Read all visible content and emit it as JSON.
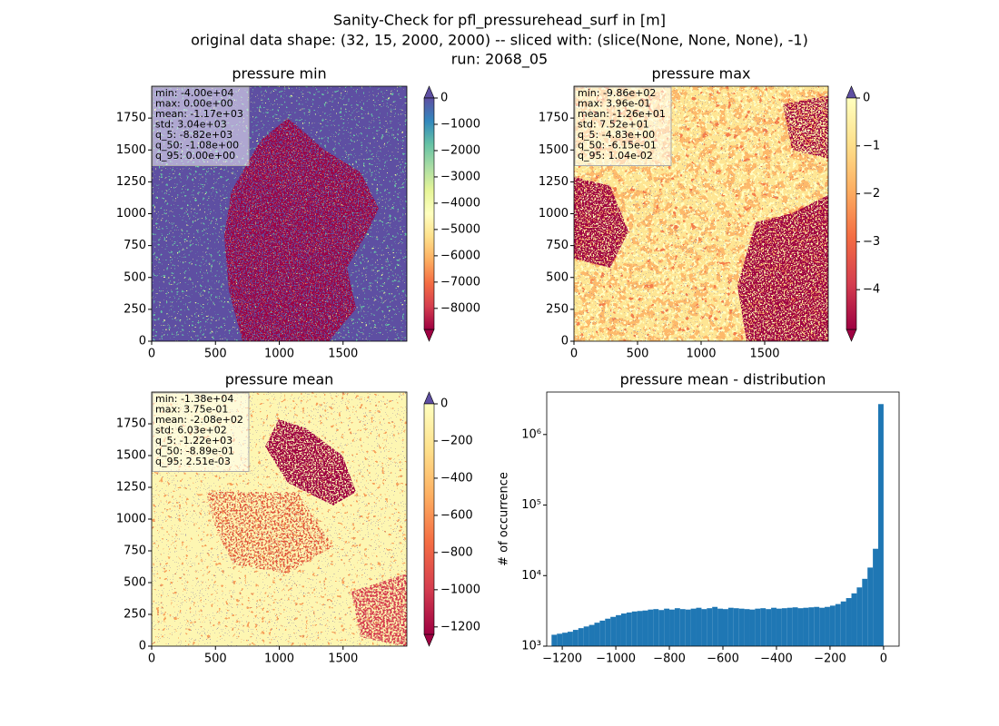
{
  "suptitle": [
    "Sanity-Check for pfl_pressurehead_surf in [m]",
    "original data shape: (32, 15, 2000, 2000) -- sliced with: (slice(None, None, None), -1)",
    "run: 2068_05"
  ],
  "chart_data": [
    {
      "type": "heatmap",
      "title": "pressure min",
      "stats": [
        "min: -4.00e+04",
        "max: 0.00e+00",
        "mean: -1.17e+03",
        "std: 3.04e+03",
        "q_5: -8.82e+03",
        "q_50: -1.08e+00",
        "q_95: 0.00e+00"
      ],
      "xlim": [
        0,
        2000
      ],
      "ylim": [
        0,
        2000
      ],
      "xticks": [
        0,
        500,
        1000,
        1500
      ],
      "yticks": [
        0,
        250,
        500,
        750,
        1000,
        1250,
        1500,
        1750
      ],
      "colorbar": {
        "lim": [
          -8800,
          0
        ],
        "ticks": [
          0,
          {
            "value": -1000,
            "label": "−1000"
          },
          {
            "value": -2000,
            "label": "−2000"
          },
          {
            "value": -3000,
            "label": "−3000"
          },
          {
            "value": -4000,
            "label": "−4000"
          },
          {
            "value": -5000,
            "label": "−5000"
          },
          {
            "value": -6000,
            "label": "−6000"
          },
          {
            "value": -7000,
            "label": "−7000"
          },
          {
            "value": -8000,
            "label": "−8000"
          }
        ],
        "colors": [
          "#9e0142",
          "#d53e4f",
          "#f46d43",
          "#fdae61",
          "#fee08b",
          "#ffffbf",
          "#e6f598",
          "#abdda4",
          "#66c2a5",
          "#3288bd",
          "#5e4fa2"
        ],
        "extend_colors": [
          "#9e0142",
          "#5e4fa2"
        ]
      }
    },
    {
      "type": "heatmap",
      "title": "pressure max",
      "stats": [
        "min: -9.86e+02",
        "max: 3.96e-01",
        "mean: -1.26e+01",
        "std: 7.52e+01",
        "q_5: -4.83e+00",
        "q_50: -6.15e-01",
        "q_95: 1.04e-02"
      ],
      "xlim": [
        0,
        2000
      ],
      "ylim": [
        0,
        2000
      ],
      "xticks": [
        0,
        500,
        1000,
        1500
      ],
      "yticks": [
        0,
        250,
        500,
        750,
        1000,
        1250,
        1500,
        1750
      ],
      "colorbar": {
        "lim": [
          -4.83,
          0
        ],
        "ticks": [
          0,
          {
            "value": -1,
            "label": "−1"
          },
          {
            "value": -2,
            "label": "−2"
          },
          {
            "value": -3,
            "label": "−3"
          },
          {
            "value": -4,
            "label": "−4"
          }
        ],
        "colors": [
          "#9e0142",
          "#d53e4f",
          "#f46d43",
          "#fdae61",
          "#fee08b",
          "#ffffbf"
        ],
        "extend_colors": [
          "#9e0142",
          "#5e4fa2"
        ]
      }
    },
    {
      "type": "heatmap",
      "title": "pressure mean",
      "stats": [
        "min: -1.38e+04",
        "max: 3.75e-01",
        "mean: -2.08e+02",
        "std: 6.03e+02",
        "q_5: -1.22e+03",
        "q_50: -8.89e-01",
        "q_95: 2.51e-03"
      ],
      "xlim": [
        0,
        2000
      ],
      "ylim": [
        0,
        2000
      ],
      "xticks": [
        0,
        500,
        1000,
        1500
      ],
      "yticks": [
        0,
        250,
        500,
        750,
        1000,
        1250,
        1500,
        1750
      ],
      "colorbar": {
        "lim": [
          -1240,
          0
        ],
        "ticks": [
          0,
          {
            "value": -200,
            "label": "−200"
          },
          {
            "value": -400,
            "label": "−400"
          },
          {
            "value": -600,
            "label": "−600"
          },
          {
            "value": -800,
            "label": "−800"
          },
          {
            "value": -1000,
            "label": "−1000"
          },
          {
            "value": -1200,
            "label": "−1200"
          }
        ],
        "colors": [
          "#9e0142",
          "#d53e4f",
          "#f46d43",
          "#fdae61",
          "#fee08b",
          "#ffffbf"
        ],
        "extend_colors": [
          "#9e0142",
          "#5e4fa2"
        ]
      }
    },
    {
      "type": "histogram",
      "title": "pressure mean - distribution",
      "ylabel": "# of occurrence",
      "color": "#1f77b4",
      "log_y": true,
      "bins": [
        -1240,
        -1220,
        -1200,
        -1180,
        -1160,
        -1140,
        -1120,
        -1100,
        -1080,
        -1060,
        -1040,
        -1020,
        -1000,
        -980,
        -960,
        -940,
        -920,
        -900,
        -880,
        -860,
        -840,
        -820,
        -800,
        -780,
        -760,
        -740,
        -720,
        -700,
        -680,
        -660,
        -640,
        -620,
        -600,
        -580,
        -560,
        -540,
        -520,
        -500,
        -480,
        -460,
        -440,
        -420,
        -400,
        -380,
        -360,
        -340,
        -320,
        -300,
        -280,
        -260,
        -240,
        -220,
        -200,
        -180,
        -160,
        -140,
        -120,
        -100,
        -80,
        -60,
        -40,
        -20,
        0
      ],
      "counts": [
        1450,
        1500,
        1550,
        1600,
        1700,
        1800,
        1900,
        2000,
        2150,
        2300,
        2450,
        2600,
        2750,
        2900,
        3000,
        3100,
        3150,
        3200,
        3300,
        3350,
        3250,
        3400,
        3300,
        3450,
        3350,
        3300,
        3400,
        3500,
        3350,
        3450,
        3600,
        3400,
        3350,
        3500,
        3450,
        3400,
        3350,
        3300,
        3400,
        3450,
        3350,
        3500,
        3400,
        3450,
        3500,
        3550,
        3450,
        3500,
        3550,
        3600,
        3500,
        3600,
        3750,
        3950,
        4300,
        4800,
        5600,
        6800,
        9000,
        13000,
        24000,
        2700000
      ],
      "xlim": [
        -1258,
        58
      ],
      "ylim": [
        1000,
        4000000
      ],
      "xticks": [
        {
          "value": -1200,
          "label": "−1200"
        },
        {
          "value": -1000,
          "label": "−1000"
        },
        {
          "value": -800,
          "label": "−800"
        },
        {
          "value": -600,
          "label": "−600"
        },
        {
          "value": -400,
          "label": "−400"
        },
        {
          "value": -200,
          "label": "−200"
        },
        0
      ],
      "yticks": [
        {
          "value": 1000,
          "label": "10³"
        },
        {
          "value": 10000,
          "label": "10⁴"
        },
        {
          "value": 100000,
          "label": "10⁵"
        },
        {
          "value": 1000000,
          "label": "10⁶"
        }
      ]
    }
  ]
}
